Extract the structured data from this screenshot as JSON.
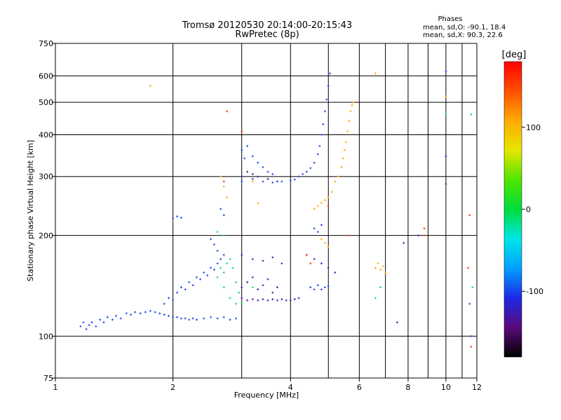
{
  "header": {
    "title_line1": "Tromsø 20120530 20:14:00-20:15:43",
    "title_line2": "RwPretec (8p)",
    "phases_heading": "Phases",
    "phases_line1": "mean, sd,O: -90.1, 18.4",
    "phases_line2": "mean, sd,X:  90.3, 22.6"
  },
  "chart_data": {
    "type": "scatter",
    "title": "Tromsø 20120530 20:14:00-20:15:43",
    "subtitle": "RwPretec (8p)",
    "xlabel": "Frequency [MHz]",
    "ylabel": "Stationary phase Virtual Height [km]",
    "x_scale": "log",
    "y_scale": "log",
    "xlim": [
      1,
      12
    ],
    "ylim": [
      75,
      750
    ],
    "x_ticks": [
      1,
      2,
      4,
      6,
      8,
      10,
      12
    ],
    "y_ticks": [
      75,
      100,
      200,
      300,
      400,
      500,
      600,
      750
    ],
    "x_grid_lines": [
      2,
      3,
      4,
      5,
      6,
      7,
      8,
      9,
      10,
      11
    ],
    "y_grid_lines": [
      100,
      200,
      300,
      400,
      500,
      600
    ],
    "grid": true,
    "colorbar": {
      "label": "[deg]",
      "range": [
        -180,
        180
      ],
      "ticks": [
        -100,
        0,
        100
      ],
      "colors": [
        "#000000",
        "#5a0a78",
        "#1e28e6",
        "#00a0ff",
        "#00e6e6",
        "#00dc3c",
        "#50e600",
        "#e6e600",
        "#ffaa00",
        "#ff5000",
        "#ff0000"
      ]
    },
    "series": [
      {
        "color_phase": -100,
        "points": [
          [
            1.16,
            107
          ],
          [
            1.18,
            110
          ],
          [
            1.2,
            105
          ],
          [
            1.22,
            108
          ],
          [
            1.24,
            110
          ],
          [
            1.27,
            107
          ],
          [
            1.3,
            112
          ],
          [
            1.33,
            110
          ],
          [
            1.36,
            114
          ],
          [
            1.4,
            112
          ],
          [
            1.43,
            115
          ],
          [
            1.47,
            113
          ],
          [
            1.52,
            117
          ],
          [
            1.56,
            116
          ],
          [
            1.6,
            118
          ],
          [
            1.65,
            117
          ],
          [
            1.7,
            118
          ],
          [
            1.75,
            119
          ],
          [
            1.8,
            118
          ],
          [
            1.85,
            117
          ],
          [
            1.9,
            116
          ],
          [
            1.95,
            115
          ],
          [
            2.0,
            114
          ],
          [
            2.05,
            114
          ],
          [
            2.1,
            113
          ],
          [
            2.15,
            113
          ],
          [
            2.2,
            112
          ],
          [
            2.25,
            113
          ],
          [
            2.3,
            112
          ],
          [
            2.4,
            113
          ],
          [
            2.5,
            114
          ],
          [
            2.6,
            113
          ],
          [
            2.7,
            114
          ],
          [
            2.8,
            112
          ],
          [
            2.9,
            113
          ],
          [
            1.9,
            125
          ],
          [
            1.95,
            130
          ],
          [
            2.0,
            128
          ],
          [
            2.05,
            135
          ],
          [
            2.1,
            140
          ],
          [
            2.15,
            138
          ],
          [
            2.2,
            145
          ],
          [
            2.25,
            142
          ],
          [
            2.3,
            150
          ],
          [
            2.35,
            148
          ],
          [
            2.4,
            155
          ],
          [
            2.45,
            152
          ],
          [
            2.5,
            160
          ],
          [
            2.55,
            158
          ],
          [
            2.6,
            165
          ],
          [
            2.65,
            170
          ],
          [
            2.7,
            175
          ],
          [
            2.0,
            225
          ],
          [
            2.05,
            228
          ],
          [
            2.1,
            226
          ],
          [
            2.5,
            195
          ],
          [
            2.55,
            188
          ],
          [
            2.6,
            180
          ],
          [
            2.65,
            240
          ],
          [
            2.7,
            230
          ],
          [
            3.0,
            290
          ],
          [
            3.2,
            295
          ],
          [
            3.4,
            290
          ],
          [
            3.6,
            288
          ],
          [
            3.8,
            290
          ],
          [
            4.0,
            292
          ],
          [
            4.1,
            294
          ],
          [
            4.2,
            300
          ],
          [
            4.3,
            305
          ],
          [
            4.4,
            310
          ],
          [
            4.5,
            318
          ],
          [
            4.6,
            330
          ],
          [
            4.7,
            350
          ],
          [
            4.75,
            370
          ],
          [
            4.8,
            400
          ],
          [
            4.85,
            430
          ],
          [
            4.9,
            470
          ],
          [
            4.95,
            510
          ],
          [
            5.0,
            560
          ],
          [
            5.05,
            610
          ],
          [
            3.0,
            360
          ],
          [
            3.05,
            340
          ],
          [
            3.1,
            370
          ],
          [
            3.2,
            345
          ],
          [
            3.3,
            330
          ],
          [
            3.4,
            320
          ],
          [
            3.5,
            310
          ],
          [
            3.6,
            305
          ],
          [
            4.6,
            210
          ],
          [
            4.7,
            205
          ],
          [
            4.8,
            215
          ],
          [
            4.5,
            140
          ],
          [
            4.6,
            138
          ],
          [
            4.7,
            142
          ],
          [
            4.8,
            138
          ],
          [
            4.9,
            140
          ],
          [
            5.0,
            141
          ],
          [
            10.0,
            620
          ],
          [
            11.6,
            100
          ],
          [
            11.5,
            125
          ]
        ]
      },
      {
        "color_phase": -130,
        "points": [
          [
            3.0,
            130
          ],
          [
            3.1,
            128
          ],
          [
            3.2,
            129
          ],
          [
            3.3,
            128
          ],
          [
            3.4,
            129
          ],
          [
            3.5,
            128
          ],
          [
            3.6,
            129
          ],
          [
            3.7,
            128
          ],
          [
            3.8,
            129
          ],
          [
            3.9,
            128
          ],
          [
            4.0,
            128
          ],
          [
            4.1,
            129
          ],
          [
            4.2,
            130
          ],
          [
            3.0,
            140
          ],
          [
            3.1,
            145
          ],
          [
            3.2,
            150
          ],
          [
            3.3,
            138
          ],
          [
            3.4,
            142
          ],
          [
            3.5,
            148
          ],
          [
            3.6,
            135
          ],
          [
            3.7,
            140
          ],
          [
            3.0,
            175
          ],
          [
            3.2,
            170
          ],
          [
            3.4,
            168
          ],
          [
            3.6,
            172
          ],
          [
            3.8,
            165
          ],
          [
            3.0,
            300
          ],
          [
            3.1,
            310
          ],
          [
            3.2,
            305
          ],
          [
            3.3,
            300
          ],
          [
            3.5,
            295
          ],
          [
            3.7,
            290
          ],
          [
            4.4,
            175
          ],
          [
            4.6,
            170
          ],
          [
            4.8,
            165
          ],
          [
            5.0,
            160
          ],
          [
            5.2,
            155
          ],
          [
            7.5,
            110
          ],
          [
            7.8,
            190
          ],
          [
            8.5,
            200
          ],
          [
            10.0,
            285
          ],
          [
            10.0,
            345
          ]
        ]
      },
      {
        "color_phase": -10,
        "points": [
          [
            2.6,
            150
          ],
          [
            2.65,
            160
          ],
          [
            2.7,
            155
          ],
          [
            2.75,
            165
          ],
          [
            2.8,
            170
          ],
          [
            2.85,
            160
          ],
          [
            2.9,
            145
          ],
          [
            2.95,
            135
          ],
          [
            2.7,
            140
          ],
          [
            2.8,
            130
          ],
          [
            2.9,
            125
          ],
          [
            2.6,
            205
          ],
          [
            2.7,
            200
          ],
          [
            3.2,
            140
          ],
          [
            3.0,
            125
          ],
          [
            6.6,
            130
          ],
          [
            6.8,
            140
          ],
          [
            10.0,
            460
          ],
          [
            11.6,
            460
          ],
          [
            11.7,
            140
          ]
        ]
      },
      {
        "color_phase": 110,
        "points": [
          [
            4.6,
            240
          ],
          [
            4.7,
            245
          ],
          [
            4.8,
            250
          ],
          [
            4.9,
            255
          ],
          [
            5.0,
            260
          ],
          [
            5.1,
            270
          ],
          [
            5.2,
            290
          ],
          [
            5.3,
            300
          ],
          [
            5.4,
            320
          ],
          [
            5.45,
            340
          ],
          [
            5.5,
            360
          ],
          [
            5.55,
            380
          ],
          [
            5.6,
            410
          ],
          [
            5.65,
            440
          ],
          [
            5.7,
            470
          ],
          [
            5.75,
            490
          ],
          [
            5.8,
            500
          ],
          [
            4.8,
            195
          ],
          [
            4.9,
            190
          ],
          [
            5.0,
            185
          ],
          [
            2.65,
            300
          ],
          [
            2.7,
            280
          ],
          [
            2.75,
            260
          ],
          [
            3.2,
            290
          ],
          [
            3.3,
            250
          ],
          [
            6.6,
            160
          ],
          [
            6.7,
            165
          ],
          [
            6.8,
            158
          ],
          [
            6.9,
            162
          ],
          [
            7.0,
            155
          ],
          [
            1.75,
            560
          ],
          [
            6.6,
            610
          ],
          [
            10.0,
            520
          ]
        ]
      },
      {
        "color_phase": 160,
        "points": [
          [
            2.75,
            470
          ],
          [
            2.7,
            290
          ],
          [
            4.4,
            175
          ],
          [
            4.5,
            165
          ],
          [
            8.8,
            210
          ],
          [
            8.8,
            200
          ],
          [
            11.6,
            93
          ],
          [
            11.5,
            230
          ],
          [
            11.4,
            160
          ],
          [
            5.0,
            245
          ],
          [
            5.6,
            200
          ],
          [
            3.0,
            410
          ]
        ]
      }
    ]
  }
}
